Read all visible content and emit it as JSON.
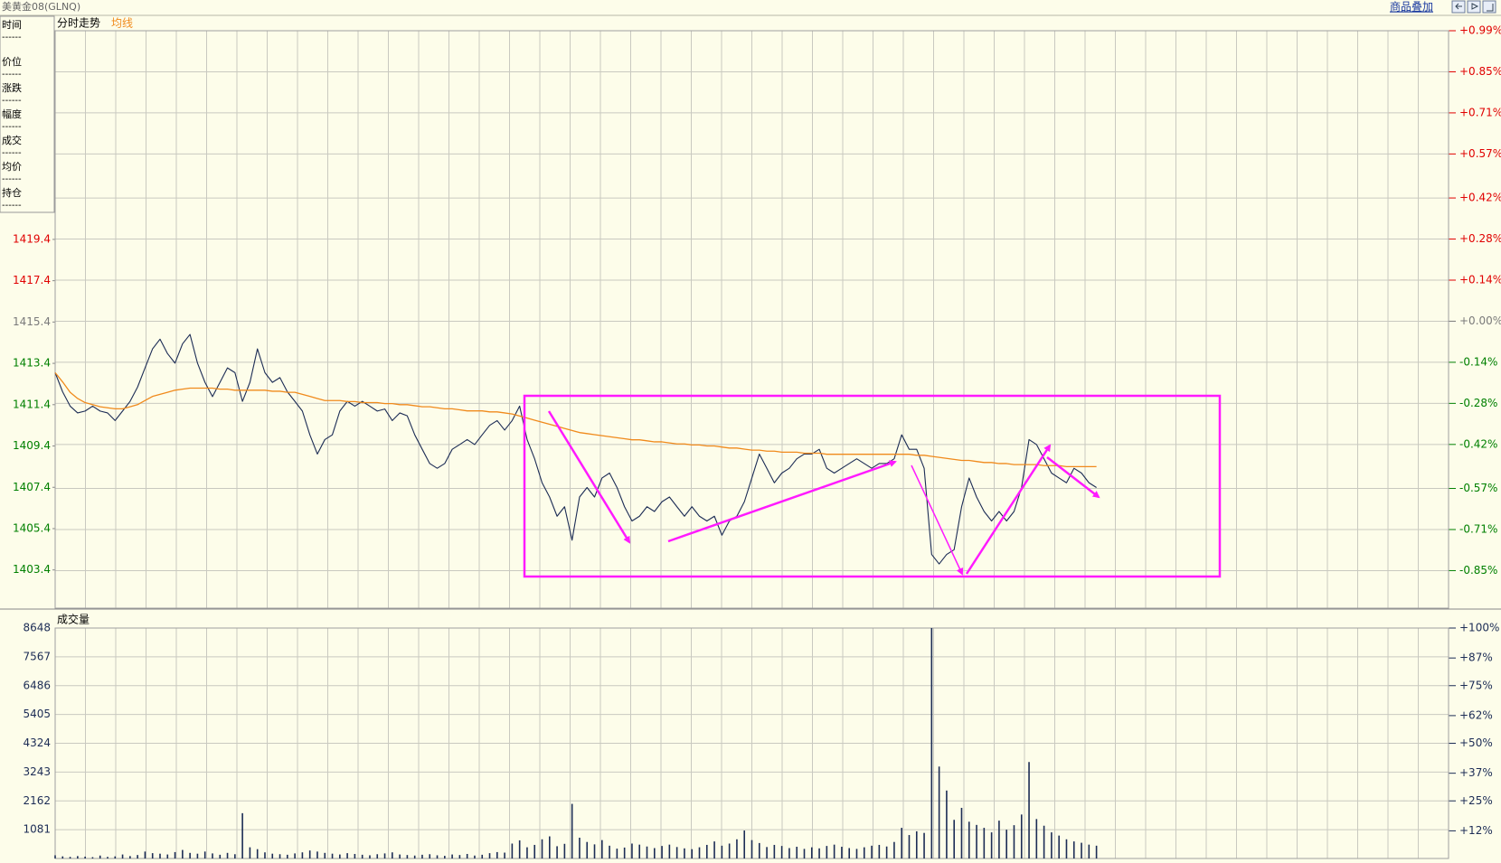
{
  "header": {
    "title": "美黄金08(GLNQ)",
    "link": "商品叠加"
  },
  "info_panel": [
    {
      "label": "时间",
      "value": "------"
    },
    {
      "label": "价位",
      "value": "------"
    },
    {
      "label": "涨跌",
      "value": "------"
    },
    {
      "label": "幅度",
      "value": "------"
    },
    {
      "label": "成交",
      "value": "------"
    },
    {
      "label": "均价",
      "value": "------"
    },
    {
      "label": "持仓",
      "value": "------"
    }
  ],
  "chart_data": [
    {
      "type": "line",
      "title": "分时走势",
      "xlim": [
        0,
        186
      ],
      "ylim": [
        1401.55,
        1429.5
      ],
      "yticks": [
        1403.4,
        1405.4,
        1407.4,
        1409.4,
        1411.4,
        1413.4,
        1415.4,
        1417.4,
        1419.4
      ],
      "y2lim": [
        -0.978,
        0.99
      ],
      "y2ticks": [
        {
          "value": 0.99,
          "label": "+0.99%"
        },
        {
          "value": 0.85,
          "label": "+0.85%"
        },
        {
          "value": 0.71,
          "label": "+0.71%"
        },
        {
          "value": 0.57,
          "label": "+0.57%"
        },
        {
          "value": 0.42,
          "label": "+0.42%"
        },
        {
          "value": 0.28,
          "label": "+0.28%"
        },
        {
          "value": 0.14,
          "label": "+0.14%"
        },
        {
          "value": 0,
          "label": "+0.00%"
        },
        {
          "value": -0.14,
          "label": "-0.14%"
        },
        {
          "value": -0.28,
          "label": "-0.28%"
        },
        {
          "value": -0.42,
          "label": "-0.42%"
        },
        {
          "value": -0.57,
          "label": "-0.57%"
        },
        {
          "value": -0.71,
          "label": "-0.71%"
        },
        {
          "value": -0.85,
          "label": "-0.85%"
        }
      ],
      "grid": "y2",
      "tick_colors": {
        "up": "#e00000",
        "flat": "#7a7a7a",
        "down": "#008000"
      },
      "series": [
        {
          "color": "#1c2c55",
          "values": [
            1412.95,
            1412.02,
            1411.33,
            1411.0,
            1411.09,
            1411.33,
            1411.09,
            1411.0,
            1410.63,
            1411.09,
            1411.56,
            1412.25,
            1413.18,
            1414.1,
            1414.57,
            1413.87,
            1413.41,
            1414.34,
            1414.8,
            1413.41,
            1412.48,
            1411.79,
            1412.48,
            1413.18,
            1412.95,
            1411.56,
            1412.48,
            1414.1,
            1412.95,
            1412.48,
            1412.71,
            1412.02,
            1411.56,
            1411.09,
            1409.94,
            1409.01,
            1409.71,
            1409.94,
            1411.09,
            1411.56,
            1411.33,
            1411.56,
            1411.33,
            1411.09,
            1411.19,
            1410.63,
            1411.0,
            1410.86,
            1409.94,
            1409.24,
            1408.55,
            1408.32,
            1408.55,
            1409.24,
            1409.47,
            1409.71,
            1409.47,
            1409.94,
            1410.4,
            1410.63,
            1410.17,
            1410.63,
            1411.33,
            1409.71,
            1408.78,
            1407.62,
            1406.93,
            1406.0,
            1406.46,
            1404.84,
            1406.93,
            1407.39,
            1406.93,
            1407.85,
            1408.09,
            1407.39,
            1406.46,
            1405.77,
            1406.0,
            1406.46,
            1406.23,
            1406.7,
            1406.93,
            1406.46,
            1406.0,
            1406.46,
            1406.0,
            1405.77,
            1406.0,
            1405.08,
            1405.77,
            1406.0,
            1406.7,
            1407.85,
            1409.01,
            1408.32,
            1407.62,
            1408.09,
            1408.32,
            1408.78,
            1409.01,
            1409.01,
            1409.24,
            1408.32,
            1408.09,
            1408.32,
            1408.55,
            1408.78,
            1408.55,
            1408.32,
            1408.55,
            1408.55,
            1408.78,
            1409.94,
            1409.24,
            1409.24,
            1408.32,
            1404.15,
            1403.69,
            1404.15,
            1404.38,
            1406.46,
            1407.85,
            1406.93,
            1406.23,
            1405.77,
            1406.23,
            1405.77,
            1406.23,
            1407.39,
            1409.71,
            1409.47,
            1408.78,
            1408.09,
            1407.85,
            1407.62,
            1408.32,
            1408.09,
            1407.62,
            1407.39
          ]
        },
        {
          "name": "均线",
          "color": "#f08a1c",
          "values": [
            1412.95,
            1412.5,
            1412.0,
            1411.7,
            1411.5,
            1411.4,
            1411.3,
            1411.25,
            1411.2,
            1411.2,
            1411.3,
            1411.4,
            1411.6,
            1411.8,
            1411.9,
            1412.0,
            1412.1,
            1412.15,
            1412.2,
            1412.2,
            1412.2,
            1412.2,
            1412.15,
            1412.15,
            1412.1,
            1412.1,
            1412.1,
            1412.1,
            1412.1,
            1412.05,
            1412.05,
            1412.0,
            1412.0,
            1411.9,
            1411.8,
            1411.7,
            1411.6,
            1411.6,
            1411.6,
            1411.55,
            1411.55,
            1411.5,
            1411.5,
            1411.5,
            1411.45,
            1411.45,
            1411.4,
            1411.4,
            1411.35,
            1411.3,
            1411.3,
            1411.25,
            1411.2,
            1411.2,
            1411.15,
            1411.1,
            1411.1,
            1411.1,
            1411.05,
            1411.05,
            1411.0,
            1410.95,
            1410.85,
            1410.75,
            1410.65,
            1410.55,
            1410.45,
            1410.35,
            1410.25,
            1410.15,
            1410.05,
            1410.0,
            1409.95,
            1409.9,
            1409.85,
            1409.8,
            1409.75,
            1409.7,
            1409.7,
            1409.65,
            1409.6,
            1409.6,
            1409.55,
            1409.5,
            1409.5,
            1409.45,
            1409.45,
            1409.4,
            1409.4,
            1409.35,
            1409.3,
            1409.3,
            1409.25,
            1409.2,
            1409.2,
            1409.15,
            1409.15,
            1409.1,
            1409.1,
            1409.1,
            1409.05,
            1409.05,
            1409.05,
            1409.0,
            1409.0,
            1409.0,
            1409.0,
            1409.0,
            1409.0,
            1409.0,
            1409.0,
            1409.0,
            1409.0,
            1409.0,
            1409.0,
            1408.95,
            1408.95,
            1408.9,
            1408.85,
            1408.8,
            1408.75,
            1408.7,
            1408.7,
            1408.65,
            1408.6,
            1408.6,
            1408.55,
            1408.55,
            1408.5,
            1408.5,
            1408.5,
            1408.5,
            1408.45,
            1408.45,
            1408.45,
            1408.4,
            1408.4,
            1408.4,
            1408.4,
            1408.4
          ]
        }
      ]
    },
    {
      "type": "bar",
      "title": "成交量",
      "xlim": [
        0,
        186
      ],
      "ylim": [
        0,
        8648
      ],
      "yticks": [
        1081,
        2162,
        3243,
        4324,
        5405,
        6486,
        7567,
        8648
      ],
      "y2lim": [
        0,
        100
      ],
      "y2ticks": [
        {
          "value": 12,
          "label": "+12%"
        },
        {
          "value": 25,
          "label": "+25%"
        },
        {
          "value": 37,
          "label": "+37%"
        },
        {
          "value": 50,
          "label": "+50%"
        },
        {
          "value": 62,
          "label": "+62%"
        },
        {
          "value": 75,
          "label": "+75%"
        },
        {
          "value": 87,
          "label": "+87%"
        },
        {
          "value": 100,
          "label": "+100%"
        }
      ],
      "grid": "y",
      "tick_color": "#1c2c55",
      "color": "#1c2c55",
      "values": [
        120,
        80,
        60,
        90,
        70,
        50,
        110,
        60,
        80,
        150,
        90,
        130,
        260,
        200,
        180,
        150,
        240,
        320,
        210,
        180,
        260,
        190,
        140,
        210,
        160,
        1700,
        420,
        350,
        230,
        180,
        160,
        140,
        190,
        230,
        300,
        260,
        210,
        180,
        150,
        200,
        170,
        140,
        120,
        160,
        190,
        230,
        150,
        130,
        110,
        140,
        160,
        120,
        100,
        150,
        130,
        170,
        110,
        140,
        200,
        240,
        220,
        560,
        680,
        420,
        510,
        720,
        830,
        460,
        550,
        2050,
        780,
        620,
        530,
        690,
        480,
        370,
        410,
        560,
        520,
        450,
        390,
        470,
        520,
        430,
        380,
        350,
        420,
        510,
        640,
        480,
        560,
        720,
        1050,
        690,
        580,
        430,
        510,
        470,
        390,
        440,
        360,
        420,
        380,
        470,
        520,
        440,
        390,
        360,
        420,
        480,
        510,
        450,
        620,
        1150,
        880,
        1020,
        960,
        8648,
        3450,
        2550,
        1450,
        1900,
        1380,
        1260,
        1150,
        980,
        1420,
        1080,
        1250,
        1650,
        3620,
        1480,
        1230,
        980,
        860,
        720,
        640,
        590,
        520,
        480
      ]
    }
  ]
}
